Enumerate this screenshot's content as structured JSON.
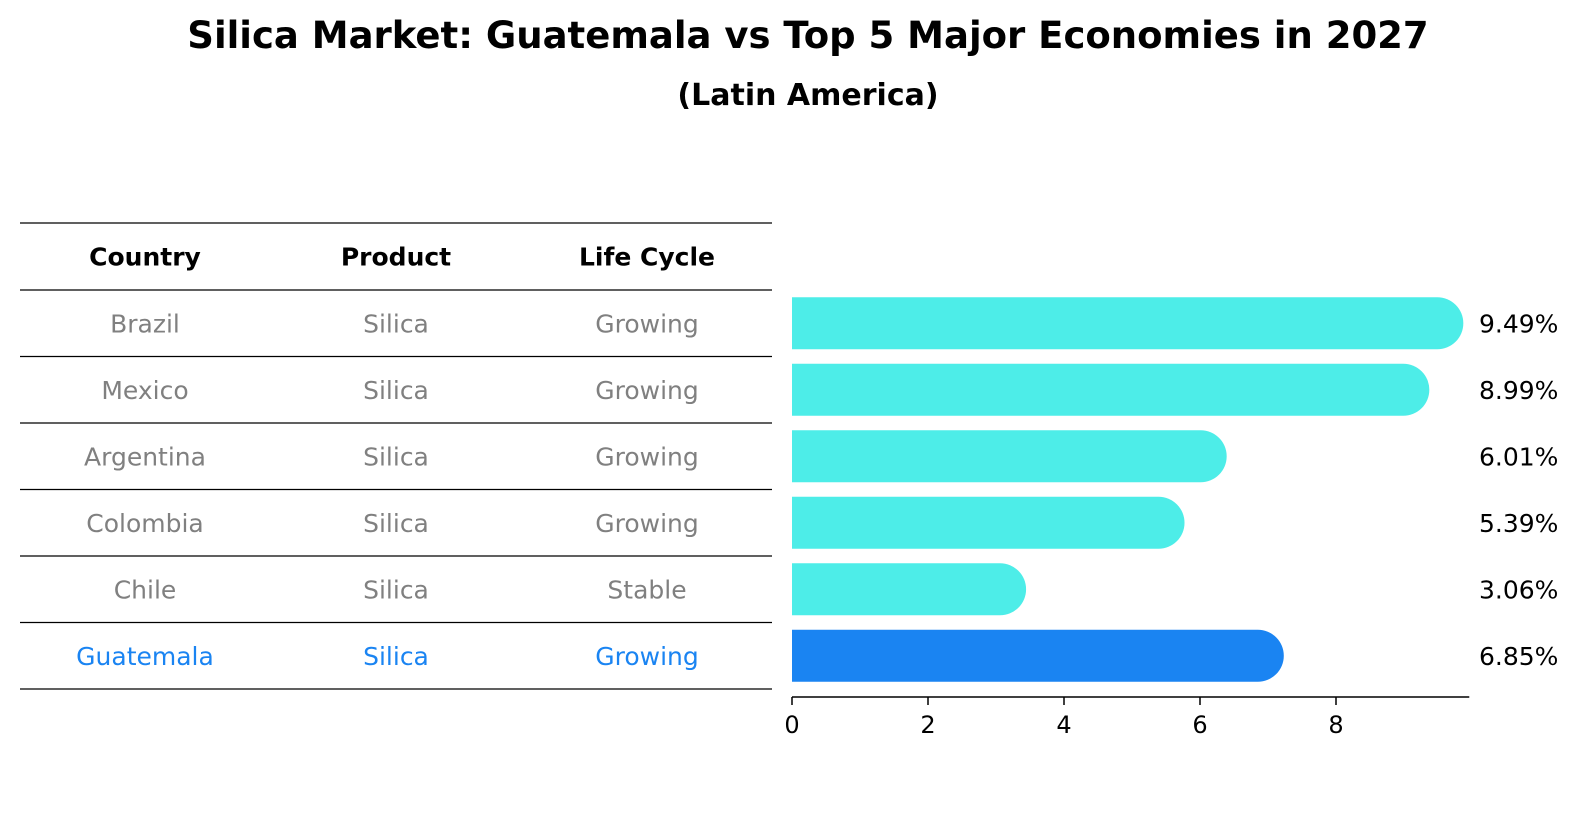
{
  "page": {
    "title": "Silica Market: Guatemala vs Top 5 Major Economies in 2027",
    "subtitle": "(Latin America)"
  },
  "table": {
    "headers": [
      "Country",
      "Product",
      "Life Cycle"
    ],
    "rows": [
      {
        "country": "Brazil",
        "product": "Silica",
        "life_cycle": "Growing",
        "highlight": false
      },
      {
        "country": "Mexico",
        "product": "Silica",
        "life_cycle": "Growing",
        "highlight": false
      },
      {
        "country": "Argentina",
        "product": "Silica",
        "life_cycle": "Growing",
        "highlight": false
      },
      {
        "country": "Colombia",
        "product": "Silica",
        "life_cycle": "Growing",
        "highlight": false
      },
      {
        "country": "Chile",
        "product": "Silica",
        "life_cycle": "Stable",
        "highlight": false
      },
      {
        "country": "Guatemala",
        "product": "Silica",
        "life_cycle": "Growing",
        "highlight": true
      }
    ]
  },
  "colors": {
    "bar": "#4DEDE8",
    "highlight_bar": "#1A84F2",
    "highlight_text": "#1A84F2",
    "row_text": "#808080",
    "header_text": "#000000",
    "rule": "#000000"
  },
  "chart_data": {
    "type": "bar",
    "orientation": "horizontal",
    "title": "Silica Market: Guatemala vs Top 5 Major Economies in 2027",
    "subtitle": "(Latin America)",
    "categories": [
      "Brazil",
      "Mexico",
      "Argentina",
      "Colombia",
      "Chile",
      "Guatemala"
    ],
    "values": [
      9.49,
      8.99,
      6.01,
      5.39,
      3.06,
      6.85
    ],
    "value_labels": [
      "9.49%",
      "8.99%",
      "6.01%",
      "5.39%",
      "3.06%",
      "6.85%"
    ],
    "highlight": "Guatemala",
    "xlim": [
      0,
      9.96
    ],
    "xticks": [
      0,
      2,
      4,
      6,
      8
    ],
    "xlabel": "",
    "ylabel": ""
  }
}
